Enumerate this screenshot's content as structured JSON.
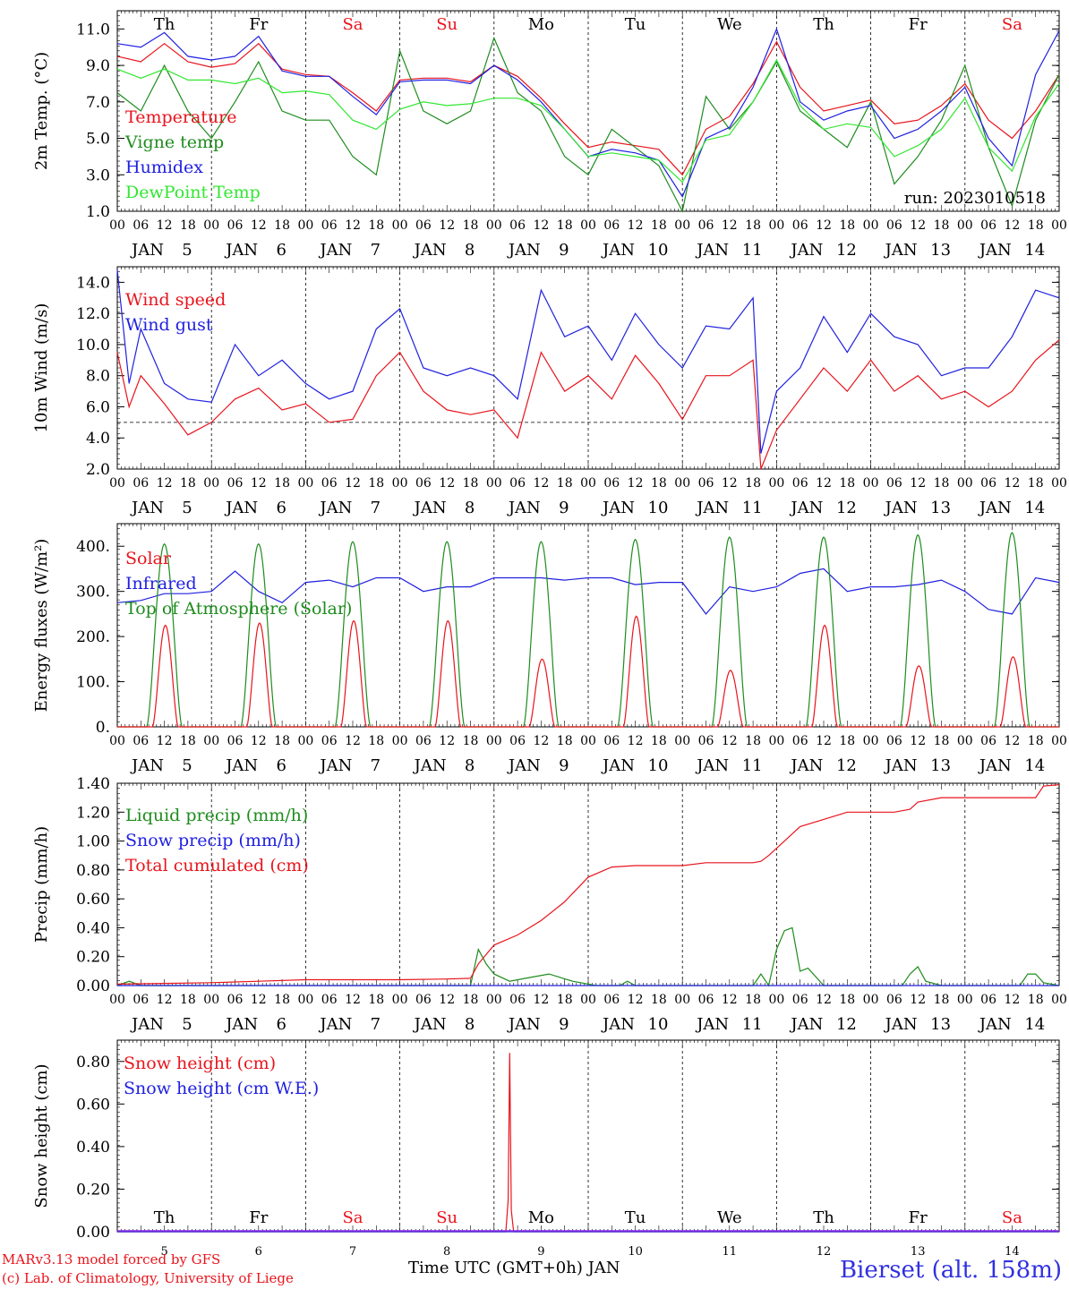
{
  "days": [
    "Th",
    "Fr",
    "Sa",
    "Su",
    "Mo",
    "Tu",
    "We",
    "Th",
    "Fr",
    "Sa"
  ],
  "weekend_days": [
    "Sa",
    "Su"
  ],
  "day_nums": [
    "5",
    "6",
    "7",
    "8",
    "9",
    "10",
    "11",
    "12",
    "13",
    "14"
  ],
  "month": "JAN",
  "hour_ticks": [
    "00",
    "06",
    "12",
    "18"
  ],
  "end_tick": "00",
  "colors": {
    "red": "#e8141c",
    "green": "#1e8c1e",
    "blue": "#2020e0",
    "lightgreen": "#32e632",
    "black": "#000000"
  },
  "footer": {
    "model": "MARv3.13 model forced by GFS",
    "credit": "(c) Lab. of Climatology, University of Liege",
    "xlabel": "Time UTC (GMT+0h) JAN",
    "station": "Bierset (alt. 158m)"
  },
  "chart_data": [
    {
      "id": "temp",
      "type": "line",
      "ylabel": "2m Temp. (°C)",
      "ylim": [
        1.0,
        12.0
      ],
      "yticks": [
        "1.0",
        "3.0",
        "5.0",
        "7.0",
        "9.0",
        "11.0"
      ],
      "x_unit": "hours since JAN 5 00 UTC",
      "annotation": "run: 2023010518",
      "series": [
        {
          "name": "Temperature",
          "color": "red",
          "x": [
            0,
            6,
            12,
            18,
            24,
            30,
            36,
            42,
            48,
            54,
            60,
            66,
            72,
            78,
            84,
            90,
            96,
            102,
            108,
            114,
            120,
            126,
            132,
            138,
            144,
            150,
            156,
            162,
            168,
            174,
            180,
            186,
            192,
            198,
            204,
            210,
            216,
            222,
            228,
            234,
            240
          ],
          "values": [
            9.5,
            9.2,
            10.2,
            9.2,
            8.9,
            9.1,
            10.2,
            8.8,
            8.5,
            8.4,
            7.5,
            6.5,
            8.2,
            8.3,
            8.3,
            8.1,
            9.0,
            8.4,
            7.2,
            5.8,
            4.5,
            4.8,
            4.6,
            4.4,
            3.0,
            5.5,
            6.2,
            8.0,
            10.3,
            7.8,
            6.5,
            6.8,
            7.1,
            5.8,
            6.0,
            6.8,
            8.0,
            6.0,
            5.0,
            6.5,
            8.5
          ]
        },
        {
          "name": "Vigne temp",
          "color": "green",
          "x": [
            0,
            6,
            12,
            18,
            24,
            30,
            36,
            42,
            48,
            54,
            60,
            66,
            72,
            78,
            84,
            90,
            96,
            102,
            108,
            114,
            120,
            126,
            132,
            138,
            144,
            150,
            156,
            162,
            168,
            174,
            180,
            186,
            192,
            198,
            204,
            210,
            216,
            222,
            228,
            234,
            240
          ],
          "values": [
            7.5,
            6.5,
            9.0,
            6.5,
            5.0,
            7.0,
            9.2,
            6.5,
            6.0,
            6.0,
            4.0,
            3.0,
            9.8,
            6.5,
            5.8,
            6.5,
            10.5,
            7.5,
            6.5,
            4.0,
            3.0,
            5.5,
            4.5,
            3.5,
            0.9,
            7.3,
            5.5,
            7.0,
            9.2,
            6.5,
            5.5,
            4.5,
            7.0,
            2.5,
            4.0,
            6.0,
            9.0,
            4.5,
            1.3,
            6.0,
            8.5
          ]
        },
        {
          "name": "Humidex",
          "color": "blue",
          "x": [
            0,
            6,
            12,
            18,
            24,
            30,
            36,
            42,
            48,
            54,
            60,
            66,
            72,
            78,
            84,
            90,
            96,
            102,
            108,
            114,
            120,
            126,
            132,
            138,
            144,
            150,
            156,
            162,
            168,
            174,
            180,
            186,
            192,
            198,
            204,
            210,
            216,
            222,
            228,
            234,
            240
          ],
          "values": [
            10.2,
            10.0,
            10.8,
            9.5,
            9.3,
            9.5,
            10.6,
            8.7,
            8.4,
            8.4,
            7.3,
            6.3,
            8.1,
            8.2,
            8.2,
            8.0,
            9.0,
            8.2,
            7.0,
            5.5,
            4.0,
            4.4,
            4.2,
            3.8,
            1.8,
            5.0,
            5.6,
            7.8,
            11.0,
            7.0,
            6.0,
            6.5,
            6.8,
            5.0,
            5.5,
            6.5,
            7.8,
            5.0,
            3.5,
            8.5,
            10.9
          ]
        },
        {
          "name": "DewPoint Temp",
          "color": "lightgreen",
          "x": [
            0,
            6,
            12,
            18,
            24,
            30,
            36,
            42,
            48,
            54,
            60,
            66,
            72,
            78,
            84,
            90,
            96,
            102,
            108,
            114,
            120,
            126,
            132,
            138,
            144,
            150,
            156,
            162,
            168,
            174,
            180,
            186,
            192,
            198,
            204,
            210,
            216,
            222,
            228,
            234,
            240
          ],
          "values": [
            8.8,
            8.3,
            8.8,
            8.2,
            8.2,
            8.0,
            8.3,
            7.5,
            7.6,
            7.4,
            6.0,
            5.5,
            6.6,
            7.0,
            6.8,
            6.9,
            7.2,
            7.2,
            6.8,
            5.5,
            4.0,
            4.2,
            4.0,
            3.8,
            2.6,
            4.9,
            5.2,
            7.0,
            9.3,
            6.8,
            5.5,
            5.8,
            5.6,
            4.0,
            4.6,
            5.5,
            7.2,
            4.5,
            3.2,
            6.2,
            8.0
          ]
        }
      ]
    },
    {
      "id": "wind",
      "type": "line",
      "ylabel": "10m Wind (m/s)",
      "ylim": [
        2.0,
        15.0
      ],
      "yticks": [
        "2.0",
        "4.0",
        "6.0",
        "8.0",
        "10.0",
        "12.0",
        "14.0"
      ],
      "reference_line": 5.0,
      "series": [
        {
          "name": "Wind speed",
          "color": "red",
          "x": [
            0,
            3,
            6,
            12,
            18,
            24,
            30,
            36,
            42,
            48,
            54,
            60,
            66,
            72,
            78,
            84,
            90,
            96,
            102,
            108,
            114,
            120,
            126,
            132,
            138,
            144,
            150,
            156,
            162,
            164,
            168,
            174,
            180,
            186,
            192,
            198,
            204,
            210,
            216,
            222,
            228,
            234,
            240
          ],
          "values": [
            9.5,
            6.0,
            8.0,
            6.2,
            4.2,
            5.0,
            6.5,
            7.2,
            5.8,
            6.2,
            5.0,
            5.2,
            8.0,
            9.5,
            7.0,
            5.8,
            5.5,
            5.8,
            4.0,
            9.5,
            7.0,
            8.0,
            6.5,
            9.3,
            7.5,
            5.2,
            8.0,
            8.0,
            9.0,
            2.0,
            4.5,
            6.5,
            8.5,
            7.0,
            9.0,
            7.0,
            8.0,
            6.5,
            7.0,
            6.0,
            7.0,
            9.0,
            10.3
          ]
        },
        {
          "name": "Wind gust",
          "color": "blue",
          "x": [
            0,
            3,
            6,
            12,
            18,
            24,
            30,
            36,
            42,
            48,
            54,
            60,
            66,
            72,
            78,
            84,
            90,
            96,
            102,
            108,
            114,
            120,
            126,
            132,
            138,
            144,
            150,
            156,
            162,
            164,
            168,
            174,
            180,
            186,
            192,
            198,
            204,
            210,
            216,
            222,
            228,
            234,
            240
          ],
          "values": [
            14.8,
            7.5,
            11.0,
            7.5,
            6.5,
            6.3,
            10.0,
            8.0,
            9.0,
            7.5,
            6.5,
            7.0,
            11.0,
            12.3,
            8.5,
            8.0,
            8.5,
            8.0,
            6.5,
            13.5,
            10.5,
            11.2,
            9.0,
            12.0,
            10.0,
            8.5,
            11.2,
            11.0,
            13.0,
            3.0,
            7.0,
            8.5,
            11.8,
            9.5,
            12.0,
            10.5,
            10.0,
            8.0,
            8.5,
            8.5,
            10.5,
            13.5,
            13.0
          ]
        }
      ]
    },
    {
      "id": "energy",
      "type": "line",
      "ylabel": "Energy fluxes (W/m²)",
      "ylim": [
        0,
        450
      ],
      "yticks": [
        "0.",
        "100.",
        "200.",
        "300.",
        "400."
      ],
      "solar_peaks": [
        225,
        230,
        235,
        235,
        150,
        245,
        125,
        225,
        135,
        155
      ],
      "toa_peaks": [
        405,
        405,
        410,
        410,
        410,
        415,
        420,
        420,
        425,
        430
      ],
      "series": [
        {
          "name": "Solar",
          "color": "red"
        },
        {
          "name": "Infrared",
          "color": "blue",
          "x": [
            0,
            6,
            12,
            18,
            24,
            30,
            36,
            42,
            48,
            54,
            60,
            66,
            72,
            78,
            84,
            90,
            96,
            102,
            108,
            114,
            120,
            126,
            132,
            138,
            144,
            150,
            156,
            162,
            168,
            174,
            180,
            186,
            192,
            198,
            204,
            210,
            216,
            222,
            228,
            234,
            240
          ],
          "values": [
            275,
            280,
            295,
            295,
            300,
            345,
            300,
            275,
            320,
            325,
            310,
            330,
            330,
            300,
            310,
            310,
            330,
            330,
            330,
            325,
            330,
            330,
            315,
            320,
            320,
            250,
            310,
            300,
            310,
            340,
            350,
            300,
            310,
            310,
            315,
            325,
            300,
            260,
            250,
            330,
            320
          ]
        },
        {
          "name": "Top of Atmosphere (Solar)",
          "color": "green"
        }
      ]
    },
    {
      "id": "precip",
      "type": "line",
      "ylabel": "Precip (mm/h)",
      "ylim": [
        0,
        1.4
      ],
      "yticks": [
        "0.00",
        "0.20",
        "0.40",
        "0.60",
        "0.80",
        "1.00",
        "1.20",
        "1.40"
      ],
      "series": [
        {
          "name": "Liquid precip (mm/h)",
          "color": "green",
          "x": [
            0,
            3,
            6,
            90,
            92,
            94,
            96,
            100,
            104,
            110,
            116,
            122,
            128,
            130,
            132,
            140,
            162,
            164,
            166,
            168,
            170,
            172,
            174,
            176,
            180,
            200,
            202,
            204,
            206,
            210,
            230,
            232,
            234,
            236,
            240
          ],
          "values": [
            0,
            0.03,
            0,
            0,
            0.25,
            0.15,
            0.08,
            0.03,
            0.05,
            0.08,
            0.03,
            0,
            0,
            0.03,
            0,
            0,
            0,
            0.08,
            0,
            0.25,
            0.38,
            0.4,
            0.1,
            0.12,
            0,
            0,
            0.08,
            0.13,
            0.03,
            0,
            0,
            0.08,
            0.08,
            0.02,
            0
          ]
        },
        {
          "name": "Snow precip (mm/h)",
          "color": "blue",
          "x": [
            0,
            240
          ],
          "values": [
            0,
            0
          ]
        },
        {
          "name": "Total cumulated (cm)",
          "color": "red",
          "x": [
            0,
            12,
            24,
            36,
            48,
            60,
            72,
            84,
            90,
            92,
            96,
            102,
            108,
            114,
            120,
            126,
            132,
            138,
            144,
            150,
            156,
            162,
            164,
            166,
            170,
            174,
            180,
            186,
            192,
            198,
            202,
            204,
            210,
            216,
            222,
            228,
            234,
            236,
            240
          ],
          "values": [
            0.01,
            0.015,
            0.02,
            0.03,
            0.04,
            0.04,
            0.04,
            0.045,
            0.05,
            0.15,
            0.28,
            0.35,
            0.45,
            0.58,
            0.75,
            0.82,
            0.83,
            0.83,
            0.83,
            0.85,
            0.85,
            0.85,
            0.86,
            0.9,
            1.0,
            1.1,
            1.15,
            1.2,
            1.2,
            1.2,
            1.22,
            1.27,
            1.3,
            1.3,
            1.3,
            1.3,
            1.3,
            1.38,
            1.39
          ]
        }
      ]
    },
    {
      "id": "snow",
      "type": "line",
      "ylabel": "Snow height (cm)",
      "ylim": [
        0,
        0.9
      ],
      "yticks": [
        "0.00",
        "0.20",
        "0.40",
        "0.60",
        "0.80"
      ],
      "series": [
        {
          "name": "Snow height (cm)",
          "color": "red",
          "x": [
            0,
            99,
            99.6,
            100,
            100.4,
            101,
            240
          ],
          "values": [
            0,
            0,
            0.15,
            0.84,
            0.1,
            0,
            0
          ]
        },
        {
          "name": "Snow height (cm W.E.)",
          "color": "blue",
          "x": [
            0,
            240
          ],
          "values": [
            0,
            0
          ]
        }
      ]
    }
  ]
}
